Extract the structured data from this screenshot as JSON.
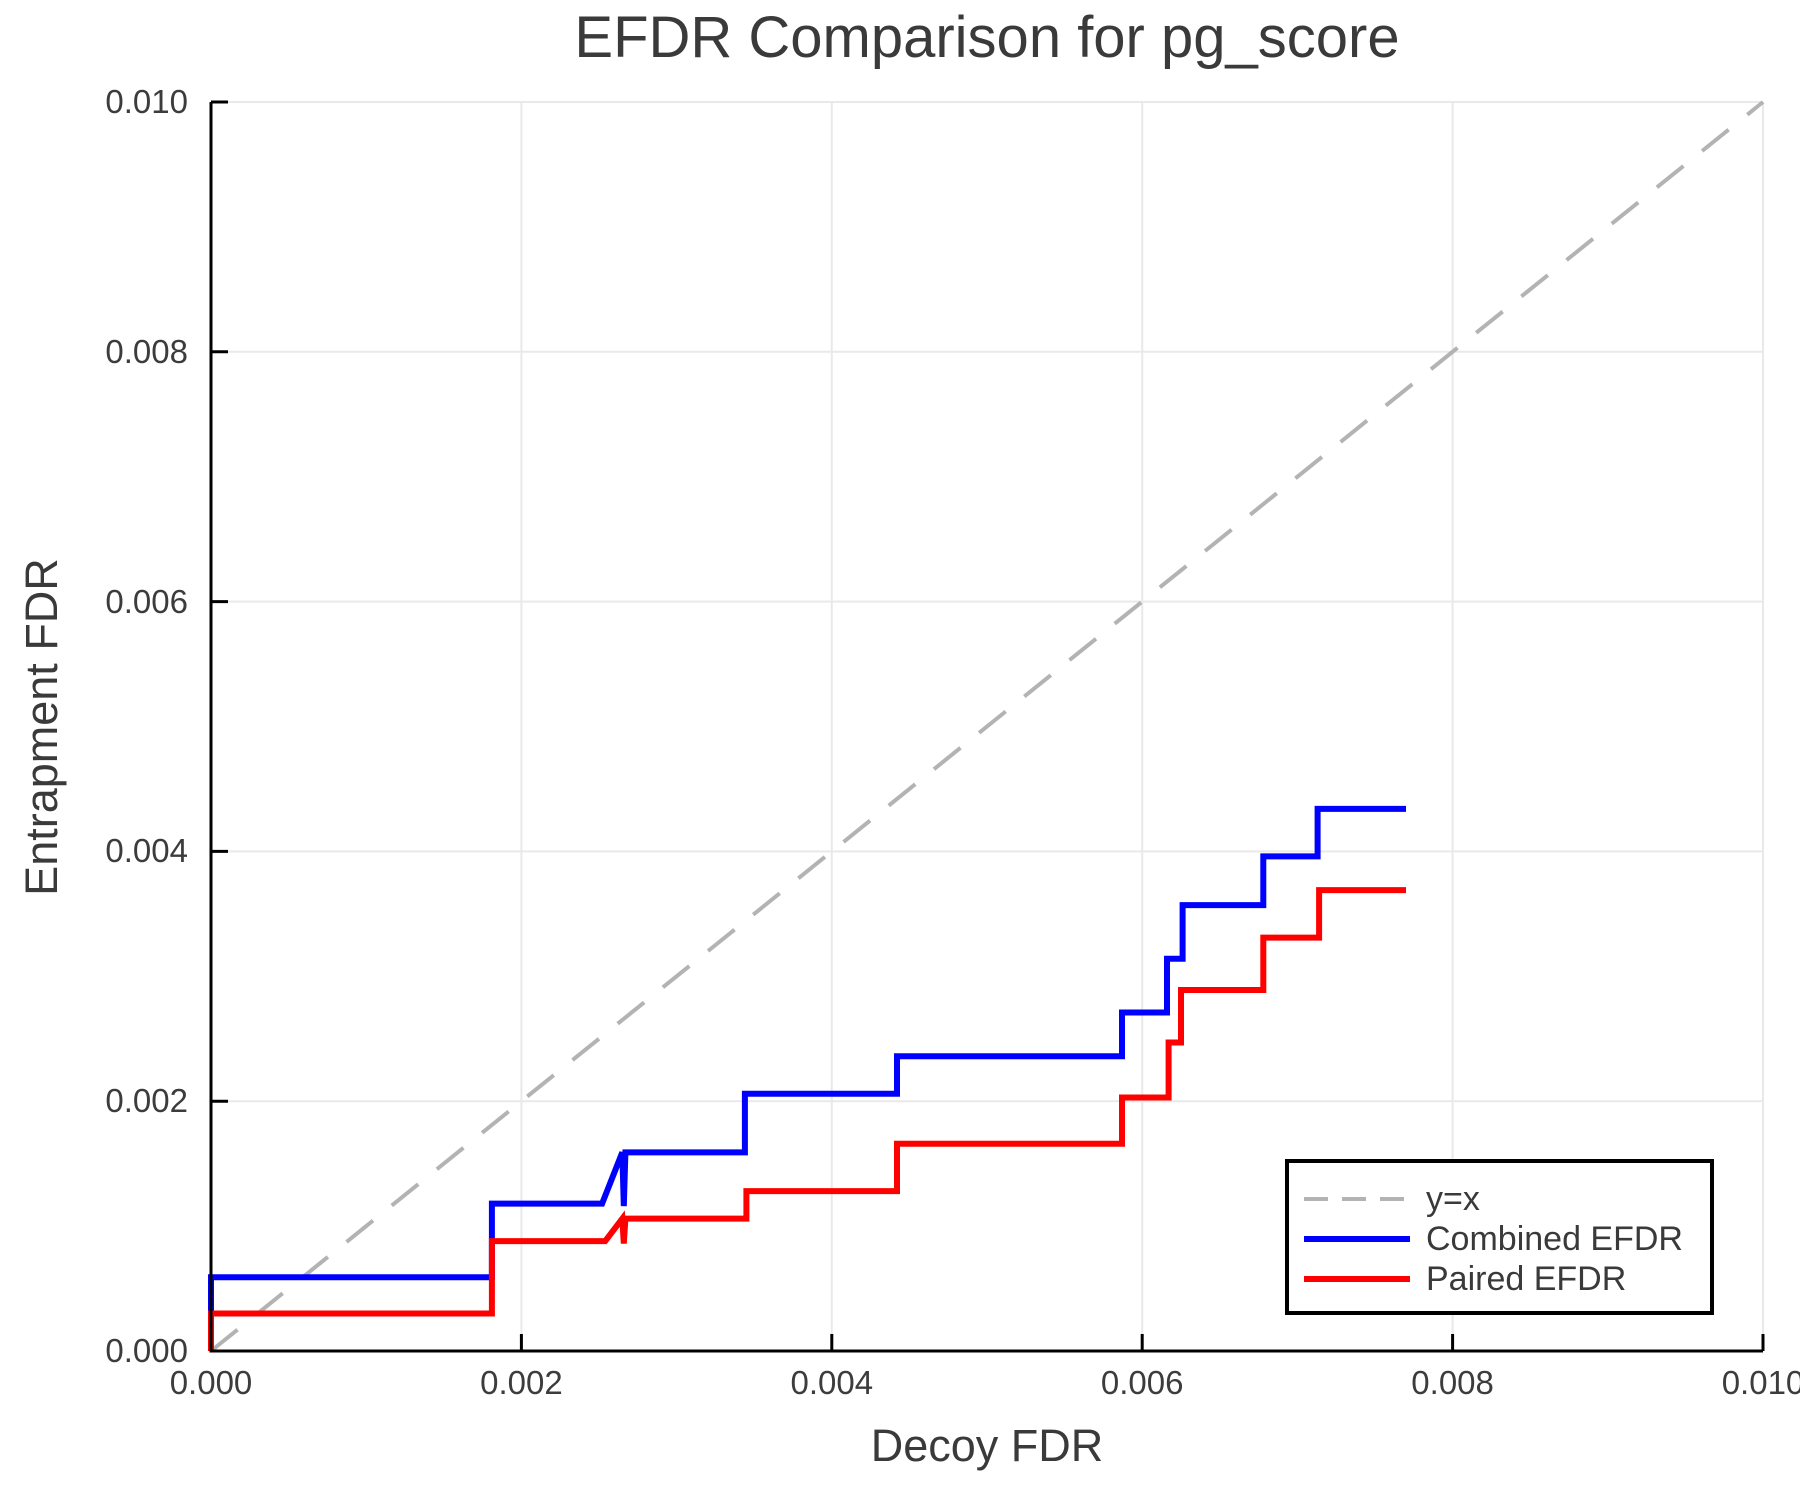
{
  "title": "EFDR Comparison for pg_score",
  "chart_data": {
    "type": "line",
    "subtype": "step",
    "title": "EFDR Comparison for pg_score",
    "xlabel": "Decoy FDR",
    "ylabel": "Entrapment FDR",
    "xlim": [
      0.0,
      0.01
    ],
    "ylim": [
      0.0,
      0.01
    ],
    "x_ticks": [
      0.0,
      0.002,
      0.004,
      0.006,
      0.008,
      0.01
    ],
    "x_tick_labels": [
      "0.000",
      "0.002",
      "0.004",
      "0.006",
      "0.008",
      "0.010"
    ],
    "y_ticks": [
      0.0,
      0.002,
      0.004,
      0.006,
      0.008,
      0.01
    ],
    "y_tick_labels": [
      "0.000",
      "0.002",
      "0.004",
      "0.006",
      "0.008",
      "0.010"
    ],
    "grid": true,
    "grid_color": "#e9e9e9",
    "axis_color": "#000000",
    "text_color": "#3a3a3a",
    "background": "#ffffff",
    "legend_position": "bottom-right",
    "series": [
      {
        "name": "y=x",
        "color": "#b3b3b3",
        "style": "dashed",
        "width": 4,
        "points": [
          [
            0.0,
            0.0
          ],
          [
            0.01,
            0.01
          ]
        ]
      },
      {
        "name": "Combined EFDR",
        "color": "#0000ff",
        "style": "solid",
        "width": 6,
        "points": [
          [
            0.0,
            0.0
          ],
          [
            0.0,
            0.00059
          ],
          [
            0.00181,
            0.00059
          ],
          [
            0.00181,
            0.00118
          ],
          [
            0.00252,
            0.00118
          ],
          [
            0.00265,
            0.00159
          ],
          [
            0.00266,
            0.00116
          ],
          [
            0.00267,
            0.00159
          ],
          [
            0.00344,
            0.00159
          ],
          [
            0.00344,
            0.00206
          ],
          [
            0.00442,
            0.00206
          ],
          [
            0.00442,
            0.00236
          ],
          [
            0.00587,
            0.00236
          ],
          [
            0.00587,
            0.00271
          ],
          [
            0.00616,
            0.00271
          ],
          [
            0.00616,
            0.00314
          ],
          [
            0.00626,
            0.00314
          ],
          [
            0.00626,
            0.00357
          ],
          [
            0.00678,
            0.00357
          ],
          [
            0.00678,
            0.00396
          ],
          [
            0.00713,
            0.00396
          ],
          [
            0.00713,
            0.00434
          ],
          [
            0.0077,
            0.00434
          ]
        ]
      },
      {
        "name": "Paired EFDR",
        "color": "#ff0000",
        "style": "solid",
        "width": 6,
        "points": [
          [
            0.0,
            0.0
          ],
          [
            0.0,
            0.0003
          ],
          [
            0.00181,
            0.0003
          ],
          [
            0.00181,
            0.00088
          ],
          [
            0.00254,
            0.00088
          ],
          [
            0.00265,
            0.00106
          ],
          [
            0.00266,
            0.00086
          ],
          [
            0.00267,
            0.00106
          ],
          [
            0.00345,
            0.00106
          ],
          [
            0.00345,
            0.00128
          ],
          [
            0.00442,
            0.00128
          ],
          [
            0.00442,
            0.00166
          ],
          [
            0.00587,
            0.00166
          ],
          [
            0.00587,
            0.00203
          ],
          [
            0.00617,
            0.00203
          ],
          [
            0.00617,
            0.00247
          ],
          [
            0.00625,
            0.00247
          ],
          [
            0.00625,
            0.00289
          ],
          [
            0.00678,
            0.00289
          ],
          [
            0.00678,
            0.00331
          ],
          [
            0.00714,
            0.00331
          ],
          [
            0.00714,
            0.00369
          ],
          [
            0.0077,
            0.00369
          ]
        ]
      }
    ]
  }
}
